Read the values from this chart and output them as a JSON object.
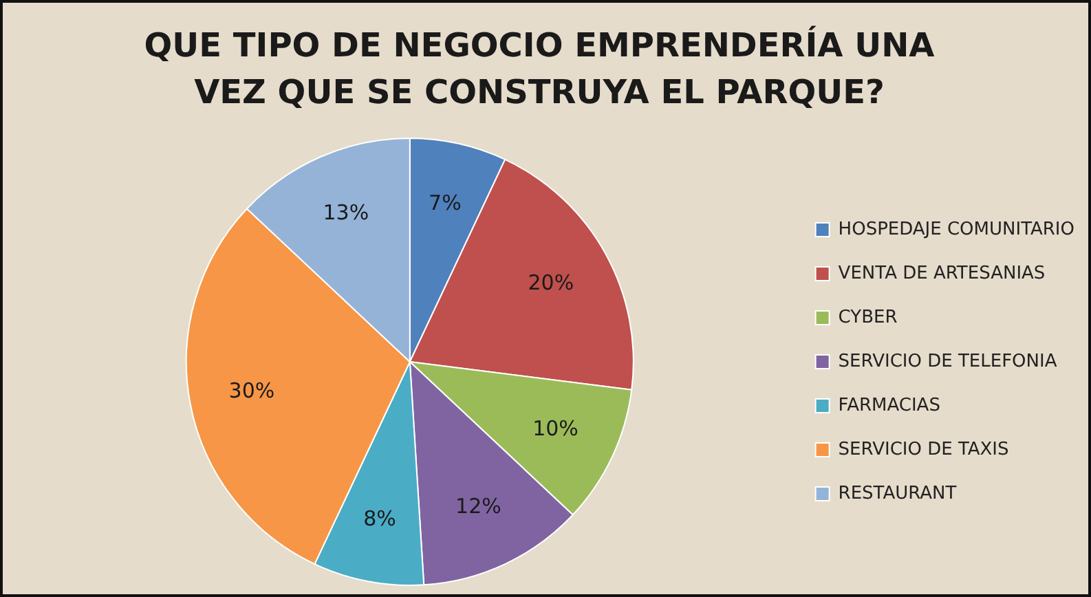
{
  "chart_data": {
    "type": "pie",
    "title": "QUE TIPO DE NEGOCIO EMPRENDERÍA UNA VEZ QUE SE CONSTRUYA EL PARQUE?",
    "categories": [
      "HOSPEDAJE COMUNITARIO",
      "VENTA DE ARTESANIAS",
      "CYBER",
      "SERVICIO DE TELEFONIA",
      "FARMACIAS",
      "SERVICIO DE TAXIS",
      "RESTAURANT"
    ],
    "values": [
      7,
      20,
      10,
      12,
      8,
      30,
      13
    ],
    "colors": [
      "#4f81bd",
      "#c0504d",
      "#9bbb59",
      "#8064a2",
      "#4bacc6",
      "#f79646",
      "#95b3d7"
    ],
    "value_labels": [
      "7%",
      "20%",
      "10%",
      "12%",
      "8%",
      "30%",
      "13%"
    ],
    "legend": "right"
  }
}
